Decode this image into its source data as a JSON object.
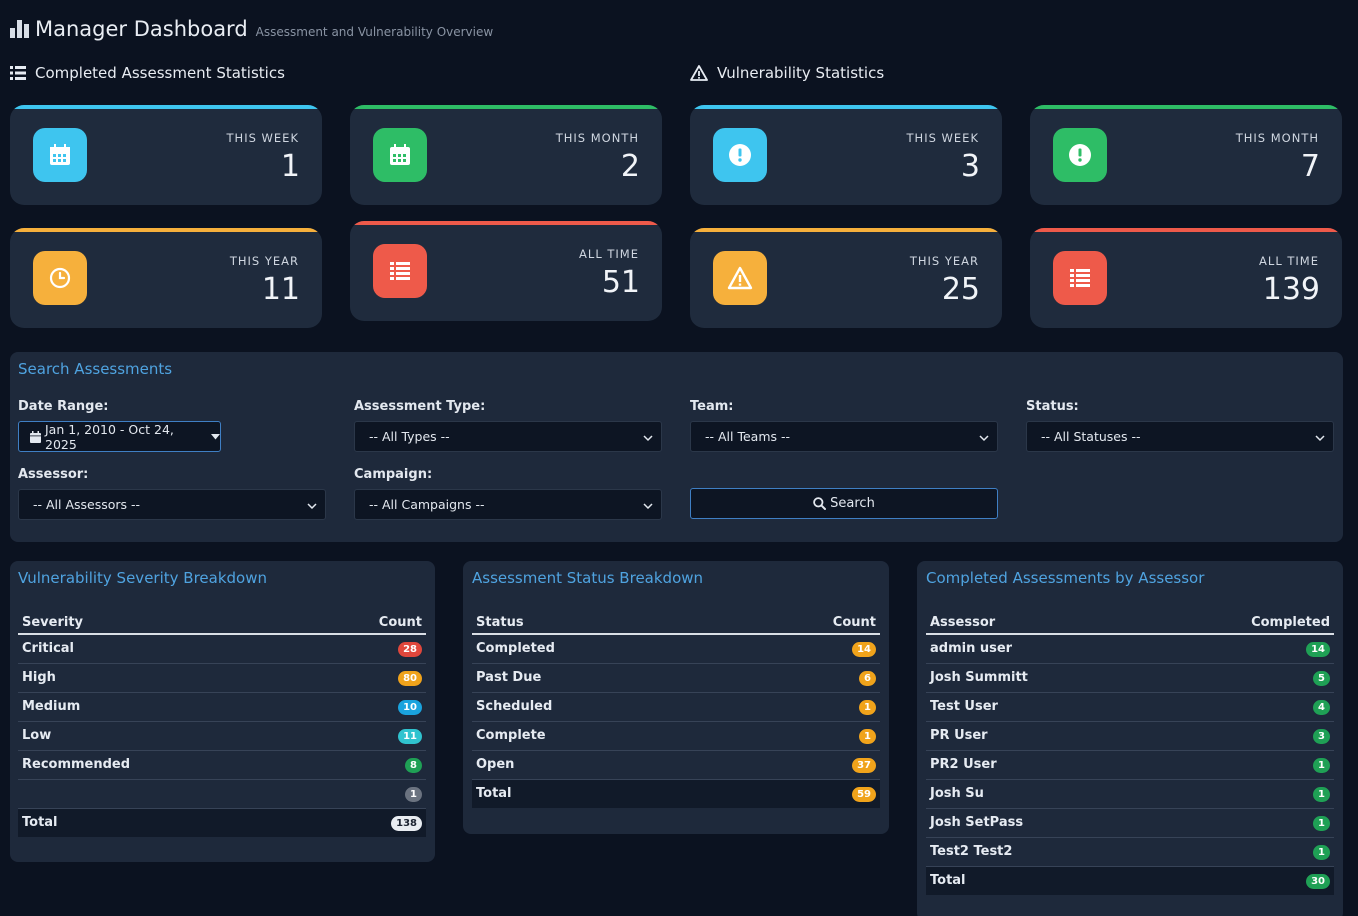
{
  "header": {
    "title": "Manager Dashboard",
    "subtitle": "Assessment and Vulnerability Overview"
  },
  "sections": {
    "assessments_title": "Completed Assessment Statistics",
    "vulns_title": "Vulnerability Statistics"
  },
  "assessment_stats": [
    {
      "label": "THIS WEEK",
      "value": "1",
      "color": "#3ec5ef",
      "icon": "calendar-icon"
    },
    {
      "label": "THIS MONTH",
      "value": "2",
      "color": "#2ebd66",
      "icon": "calendar-icon"
    },
    {
      "label": "THIS YEAR",
      "value": "11",
      "color": "#f6b03c",
      "icon": "clock-icon"
    },
    {
      "label": "ALL TIME",
      "value": "51",
      "color": "#ee5a4a",
      "icon": "list-icon"
    }
  ],
  "vuln_stats": [
    {
      "label": "THIS WEEK",
      "value": "3",
      "color": "#3ec5ef",
      "icon": "exclamation-icon"
    },
    {
      "label": "THIS MONTH",
      "value": "7",
      "color": "#2ebd66",
      "icon": "exclamation-icon"
    },
    {
      "label": "THIS YEAR",
      "value": "25",
      "color": "#f6b03c",
      "icon": "warning-icon"
    },
    {
      "label": "ALL TIME",
      "value": "139",
      "color": "#ee5a4a",
      "icon": "list-icon"
    }
  ],
  "search": {
    "title": "Search Assessments",
    "date_range_label": "Date Range:",
    "date_range_value": "Jan 1, 2010 - Oct 24, 2025",
    "type_label": "Assessment Type:",
    "type_value": "-- All Types --",
    "team_label": "Team:",
    "team_value": "-- All Teams --",
    "status_label": "Status:",
    "status_value": "-- All Statuses --",
    "assessor_label": "Assessor:",
    "assessor_value": "-- All Assessors --",
    "campaign_label": "Campaign:",
    "campaign_value": "-- All Campaigns --",
    "search_button": "Search"
  },
  "severity": {
    "title": "Vulnerability Severity Breakdown",
    "col_name": "Severity",
    "col_count": "Count",
    "rows": [
      {
        "name": "Critical",
        "count": "28",
        "color": "#e0473c"
      },
      {
        "name": "High",
        "count": "80",
        "color": "#f0a31b"
      },
      {
        "name": "Medium",
        "count": "10",
        "color": "#1aa3de"
      },
      {
        "name": "Low",
        "count": "11",
        "color": "#30c3cf"
      },
      {
        "name": "Recommended",
        "count": "8",
        "color": "#1fa055"
      },
      {
        "name": "",
        "count": "1",
        "color": "#6b7380"
      }
    ],
    "total_label": "Total",
    "total_count": "138",
    "total_color": "#e8ecf1"
  },
  "status_breakdown": {
    "title": "Assessment Status Breakdown",
    "col_name": "Status",
    "col_count": "Count",
    "rows": [
      {
        "name": "Completed",
        "count": "14",
        "color": "#f0a31b"
      },
      {
        "name": "Past Due",
        "count": "6",
        "color": "#f0a31b"
      },
      {
        "name": "Scheduled",
        "count": "1",
        "color": "#f0a31b"
      },
      {
        "name": "Complete",
        "count": "1",
        "color": "#f0a31b"
      },
      {
        "name": "Open",
        "count": "37",
        "color": "#f0a31b"
      }
    ],
    "total_label": "Total",
    "total_count": "59",
    "total_color": "#f0a31b"
  },
  "assessor_breakdown": {
    "title": "Completed Assessments by Assessor",
    "col_name": "Assessor",
    "col_count": "Completed",
    "rows": [
      {
        "name": "admin user",
        "count": "14",
        "color": "#1fa055"
      },
      {
        "name": "Josh Summitt",
        "count": "5",
        "color": "#1fa055"
      },
      {
        "name": "Test User",
        "count": "4",
        "color": "#1fa055"
      },
      {
        "name": "PR User",
        "count": "3",
        "color": "#1fa055"
      },
      {
        "name": "PR2 User",
        "count": "1",
        "color": "#1fa055"
      },
      {
        "name": "Josh Su",
        "count": "1",
        "color": "#1fa055"
      },
      {
        "name": "Josh SetPass",
        "count": "1",
        "color": "#1fa055"
      },
      {
        "name": "Test2 Test2",
        "count": "1",
        "color": "#1fa055"
      }
    ],
    "total_label": "Total",
    "total_count": "30",
    "total_color": "#1fa055"
  }
}
